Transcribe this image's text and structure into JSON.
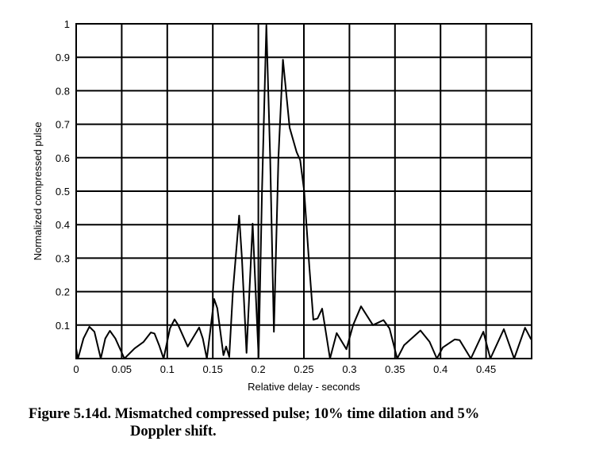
{
  "chart_data": {
    "type": "line",
    "title": "",
    "xlabel": "Relative delay - seconds",
    "ylabel": "Normalized compressed pulse",
    "xlim": [
      0,
      0.5
    ],
    "ylim": [
      0,
      1
    ],
    "grid": true,
    "x_ticks": [
      "0",
      "0.05",
      "0.1",
      "0.15",
      "0.2",
      "0.25",
      "0.3",
      "0.35",
      "0.4",
      "0.45"
    ],
    "x_tick_values": [
      0,
      0.05,
      0.1,
      0.15,
      0.2,
      0.25,
      0.3,
      0.35,
      0.4,
      0.45
    ],
    "y_ticks": [
      "0.1",
      "0.2",
      "0.3",
      "0.4",
      "0.5",
      "0.6",
      "0.7",
      "0.8",
      "0.9",
      "1"
    ],
    "y_tick_values": [
      0.1,
      0.2,
      0.3,
      0.4,
      0.5,
      0.6,
      0.7,
      0.8,
      0.9,
      1
    ],
    "series": [
      {
        "name": "compressed pulse",
        "color": "#000000",
        "x": [
          0,
          0.002,
          0.008,
          0.0145,
          0.02,
          0.027,
          0.032,
          0.037,
          0.043,
          0.053,
          0.064,
          0.074,
          0.082,
          0.086,
          0.091,
          0.096,
          0.103,
          0.108,
          0.112,
          0.1225,
          0.13,
          0.135,
          0.139,
          0.1435,
          0.148,
          0.1515,
          0.155,
          0.1617,
          0.1646,
          0.168,
          0.172,
          0.1789,
          0.182,
          0.187,
          0.1937,
          0.197,
          0.2003,
          0.204,
          0.2088,
          0.213,
          0.2171,
          0.222,
          0.227,
          0.2343,
          0.242,
          0.2459,
          0.2503,
          0.256,
          0.2604,
          0.265,
          0.27,
          0.2787,
          0.286,
          0.2967,
          0.304,
          0.3127,
          0.3258,
          0.3374,
          0.344,
          0.3524,
          0.36,
          0.378,
          0.388,
          0.396,
          0.4024,
          0.4155,
          0.421,
          0.4333,
          0.447,
          0.4547,
          0.4695,
          0.4808,
          0.4928,
          0.4995
        ],
        "y": [
          0.03,
          0.0,
          0.06,
          0.095,
          0.08,
          0.0,
          0.06,
          0.083,
          0.06,
          0.0,
          0.03,
          0.05,
          0.078,
          0.075,
          0.04,
          0.0,
          0.09,
          0.117,
          0.1,
          0.036,
          0.07,
          0.093,
          0.06,
          0.0,
          0.1,
          0.178,
          0.15,
          0.01,
          0.036,
          0.005,
          0.2,
          0.427,
          0.3,
          0.017,
          0.403,
          0.2,
          0.005,
          0.5,
          0.996,
          0.6,
          0.08,
          0.6,
          0.893,
          0.69,
          0.617,
          0.593,
          0.502,
          0.273,
          0.116,
          0.12,
          0.149,
          0.0,
          0.076,
          0.028,
          0.1,
          0.156,
          0.1,
          0.115,
          0.09,
          0.0,
          0.04,
          0.084,
          0.05,
          0.0,
          0.033,
          0.057,
          0.055,
          0.0,
          0.08,
          0.0,
          0.088,
          0.0,
          0.092,
          0.057
        ]
      }
    ]
  },
  "caption": {
    "line1": "Figure 5.14d. Mismatched compressed pulse; 10% time dilation and 5%",
    "line2": "Doppler shift."
  }
}
